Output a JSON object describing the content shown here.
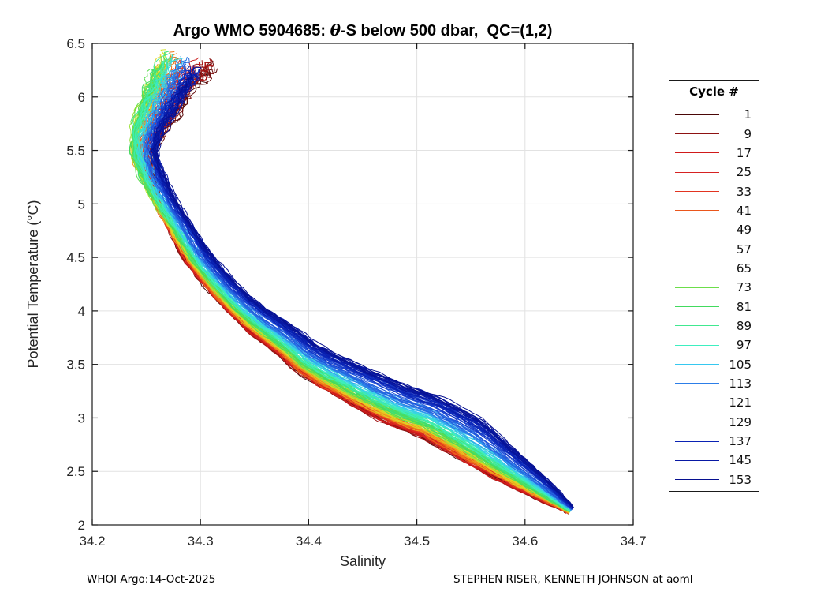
{
  "title": {
    "prefix": "Argo WMO 5904685: ",
    "theta": "θ",
    "suffix": "-S below 500 dbar,  QC=(1,2)"
  },
  "footer": {
    "left": "WHOI Argo:14-Oct-2025",
    "right": "STEPHEN RISER, KENNETH JOHNSON at aoml"
  },
  "chart_data": {
    "type": "line",
    "title": "Argo WMO 5904685: θ-S below 500 dbar,  QC=(1,2)",
    "xlabel": "Salinity",
    "ylabel": "Potential Temperature (°C)",
    "xlim": [
      34.2,
      34.7
    ],
    "ylim": [
      2,
      6.5
    ],
    "xticks": [
      34.2,
      34.3,
      34.4,
      34.5,
      34.6,
      34.7
    ],
    "xtick_labels": [
      "34.2",
      "34.3",
      "34.4",
      "34.5",
      "34.6",
      "34.7"
    ],
    "yticks": [
      2,
      2.5,
      3,
      3.5,
      4,
      4.5,
      5,
      5.5,
      6,
      6.5
    ],
    "ytick_labels": [
      "2",
      "2.5",
      "3",
      "3.5",
      "4",
      "4.5",
      "5",
      "5.5",
      "6",
      "6.5"
    ],
    "grid": true,
    "grid_color": "#e2e2e2",
    "axis_color": "#1a1a1a",
    "tick_label_color": "#262626",
    "legend_title": "Cycle #",
    "legend_position": "outside-right",
    "n_cycles": 153,
    "legend_entries": [
      {
        "label": "1",
        "color": "#4A0707"
      },
      {
        "label": "9",
        "color": "#8E1212"
      },
      {
        "label": "17",
        "color": "#D01A1A"
      },
      {
        "label": "25",
        "color": "#D62222"
      },
      {
        "label": "33",
        "color": "#E23420"
      },
      {
        "label": "41",
        "color": "#EA561C"
      },
      {
        "label": "49",
        "color": "#F0821A"
      },
      {
        "label": "57",
        "color": "#EACB22"
      },
      {
        "label": "65",
        "color": "#CCE628"
      },
      {
        "label": "73",
        "color": "#6CDE4A"
      },
      {
        "label": "81",
        "color": "#42DA5E"
      },
      {
        "label": "89",
        "color": "#40E890"
      },
      {
        "label": "97",
        "color": "#3EEFC0"
      },
      {
        "label": "105",
        "color": "#36C8F0"
      },
      {
        "label": "113",
        "color": "#2C7EE8"
      },
      {
        "label": "121",
        "color": "#2052DA"
      },
      {
        "label": "129",
        "color": "#1232C2"
      },
      {
        "label": "137",
        "color": "#0A22B4"
      },
      {
        "label": "145",
        "color": "#0818A4"
      },
      {
        "label": "153",
        "color": "#061090"
      }
    ],
    "colormap_stops": [
      "#4A0707",
      "#8E1212",
      "#D01A1A",
      "#D62222",
      "#E23420",
      "#EA561C",
      "#F0821A",
      "#EACB22",
      "#CCE628",
      "#6CDE4A",
      "#42DA5E",
      "#40E890",
      "#3EEFC0",
      "#36C8F0",
      "#2C7EE8",
      "#2052DA",
      "#1232C2",
      "#0A22B4",
      "#0818A4",
      "#061090"
    ],
    "backbone_mean_curve_S_theta": [
      [
        34.298,
        6.45
      ],
      [
        34.29,
        6.35
      ],
      [
        34.283,
        6.25
      ],
      [
        34.276,
        6.12
      ],
      [
        34.27,
        6.0
      ],
      [
        34.263,
        5.88
      ],
      [
        34.257,
        5.75
      ],
      [
        34.252,
        5.62
      ],
      [
        34.25,
        5.5
      ],
      [
        34.252,
        5.38
      ],
      [
        34.256,
        5.25
      ],
      [
        34.262,
        5.12
      ],
      [
        34.268,
        5.0
      ],
      [
        34.275,
        4.88
      ],
      [
        34.282,
        4.76
      ],
      [
        34.289,
        4.64
      ],
      [
        34.296,
        4.52
      ],
      [
        34.305,
        4.4
      ],
      [
        34.315,
        4.28
      ],
      [
        34.326,
        4.16
      ],
      [
        34.338,
        4.04
      ],
      [
        34.352,
        3.92
      ],
      [
        34.368,
        3.8
      ],
      [
        34.384,
        3.68
      ],
      [
        34.398,
        3.56
      ],
      [
        34.418,
        3.44
      ],
      [
        34.44,
        3.33
      ],
      [
        34.462,
        3.22
      ],
      [
        34.485,
        3.11
      ],
      [
        34.512,
        3.01
      ],
      [
        34.53,
        2.91
      ],
      [
        34.547,
        2.81
      ],
      [
        34.563,
        2.7
      ],
      [
        34.58,
        2.58
      ],
      [
        34.597,
        2.46
      ],
      [
        34.613,
        2.35
      ],
      [
        34.627,
        2.25
      ],
      [
        34.638,
        2.17
      ],
      [
        34.644,
        2.12
      ]
    ]
  }
}
